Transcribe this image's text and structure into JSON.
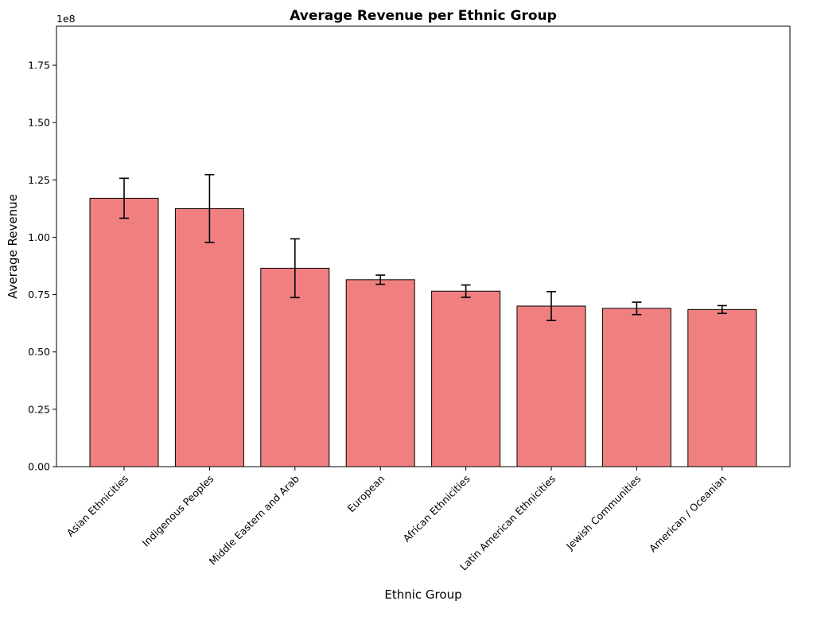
{
  "chart_data": {
    "type": "bar",
    "title": "Average Revenue per Ethnic Group",
    "xlabel": "Ethnic Group",
    "ylabel": "Average Revenue",
    "y_offset_label": "1e8",
    "y_scale": 100000000,
    "ylim": [
      0,
      192000000
    ],
    "y_ticks": [
      0,
      25000000,
      50000000,
      75000000,
      100000000,
      125000000,
      150000000,
      175000000
    ],
    "y_tick_labels": [
      "0.00",
      "0.25",
      "0.50",
      "0.75",
      "1.00",
      "1.25",
      "1.50",
      "1.75"
    ],
    "categories": [
      "Asian Ethnicities",
      "Indigenous Peoples",
      "Middle Eastern and Arab",
      "European",
      "African Ethnicities",
      "Latin American Ethnicities",
      "Jewish Communities",
      "American / Oceanian"
    ],
    "values": [
      117000000,
      112500000,
      86500000,
      81500000,
      76500000,
      70000000,
      69000000,
      68500000
    ],
    "errors": [
      8700000,
      14800000,
      12800000,
      2000000,
      2700000,
      6300000,
      2700000,
      1700000
    ],
    "bar_color": "#f08080",
    "edge_color": "#000000",
    "grid": false,
    "legend": "none"
  }
}
